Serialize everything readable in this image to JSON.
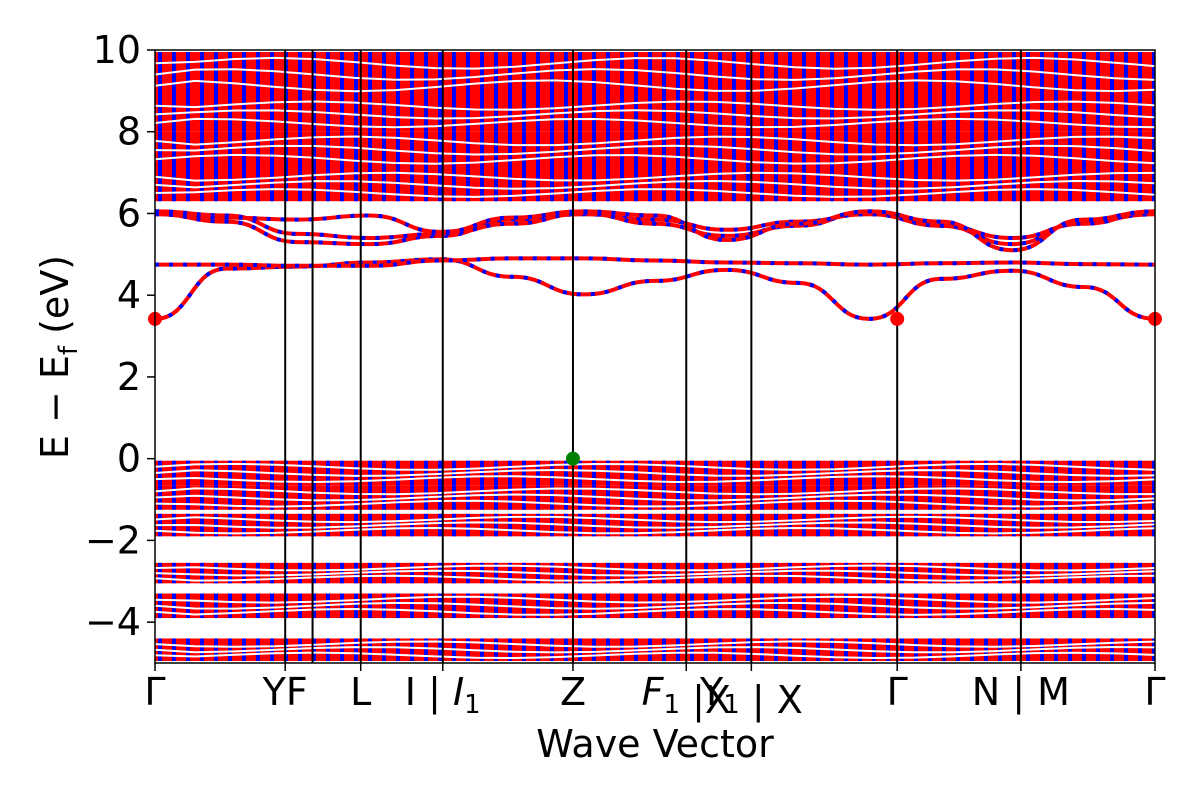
{
  "chart_data": {
    "type": "line",
    "xlabel": "Wave Vector",
    "ylabel": "E − E",
    "ylabel_sub": "f",
    "ylabel_unit": " (eV)",
    "ylim": [
      -5,
      10
    ],
    "yticks": [
      10,
      8,
      6,
      4,
      2,
      0,
      -2,
      -4
    ],
    "ytick_labels": [
      "10",
      "8",
      "6",
      "4",
      "2",
      "0",
      "−2",
      "−4"
    ],
    "xlim": [
      0,
      7.68
    ],
    "kpath": [
      {
        "x": 0.0,
        "parts": [
          {
            "t": "Γ"
          }
        ]
      },
      {
        "x": 1.0,
        "parts": [
          {
            "t": "YF"
          }
        ]
      },
      {
        "x": 1.58,
        "parts": [
          {
            "t": "L"
          }
        ]
      },
      {
        "x": 2.21,
        "parts": [
          {
            "t": "I | "
          },
          {
            "t": "I",
            "italic": true
          },
          {
            "t": "1",
            "sub": true
          }
        ]
      },
      {
        "x": 3.21,
        "parts": [
          {
            "t": "Z"
          }
        ]
      },
      {
        "x": 4.08,
        "parts": [
          {
            "t": "F",
            "italic": true
          },
          {
            "t": "1",
            "sub": true
          },
          {
            "t": " |X"
          }
        ]
      },
      {
        "x": 4.58,
        "parts": [
          {
            "t": "Y"
          },
          {
            "t": "1",
            "sub": true
          },
          {
            "t": " | X"
          }
        ]
      },
      {
        "x": 5.7,
        "parts": [
          {
            "t": "Γ"
          }
        ]
      },
      {
        "x": 6.65,
        "parts": [
          {
            "t": "N | M"
          }
        ]
      },
      {
        "x": 7.68,
        "parts": [
          {
            "t": "Γ"
          }
        ]
      }
    ],
    "vlines": [
      1.0,
      1.21,
      1.58,
      2.21,
      3.21,
      4.08,
      4.58,
      5.7,
      6.65
    ],
    "colors": {
      "spin_up": "#ff0000",
      "spin_down": "#0000ff",
      "line": "#000000",
      "vbm": "#008000",
      "cbm": "#ff0000"
    },
    "series": [
      {
        "y": [
          3.42,
          4.65,
          4.7,
          4.8,
          4.88,
          4.45,
          4.02,
          4.35,
          4.62,
          4.3,
          3.42,
          4.4,
          4.6,
          4.2,
          3.42
        ]
      },
      {
        "y": [
          4.75,
          4.75,
          4.72,
          4.72,
          4.85,
          4.9,
          4.9,
          4.85,
          4.8,
          4.78,
          4.75,
          4.78,
          4.8,
          4.76,
          4.75
        ]
      },
      {
        "y": [
          5.98,
          5.8,
          5.3,
          5.25,
          5.45,
          5.85,
          5.98,
          5.85,
          5.6,
          5.8,
          5.98,
          5.7,
          5.25,
          5.8,
          5.98
        ]
      },
      {
        "y": [
          6.05,
          5.95,
          5.5,
          5.4,
          5.5,
          5.75,
          6.0,
          5.75,
          5.45,
          5.7,
          6.05,
          5.7,
          5.4,
          5.75,
          6.05
        ]
      },
      {
        "y": [
          6.05,
          5.9,
          5.85,
          5.95,
          5.55,
          5.9,
          6.05,
          5.95,
          5.35,
          5.75,
          6.05,
          5.8,
          5.1,
          5.85,
          6.05
        ]
      }
    ],
    "vbm_point": {
      "x": 3.21,
      "y": 0.0
    },
    "cbm_points": [
      {
        "x": 0.0,
        "y": 3.42
      },
      {
        "x": 5.7,
        "y": 3.42
      },
      {
        "x": 7.68,
        "y": 3.42
      }
    ]
  }
}
